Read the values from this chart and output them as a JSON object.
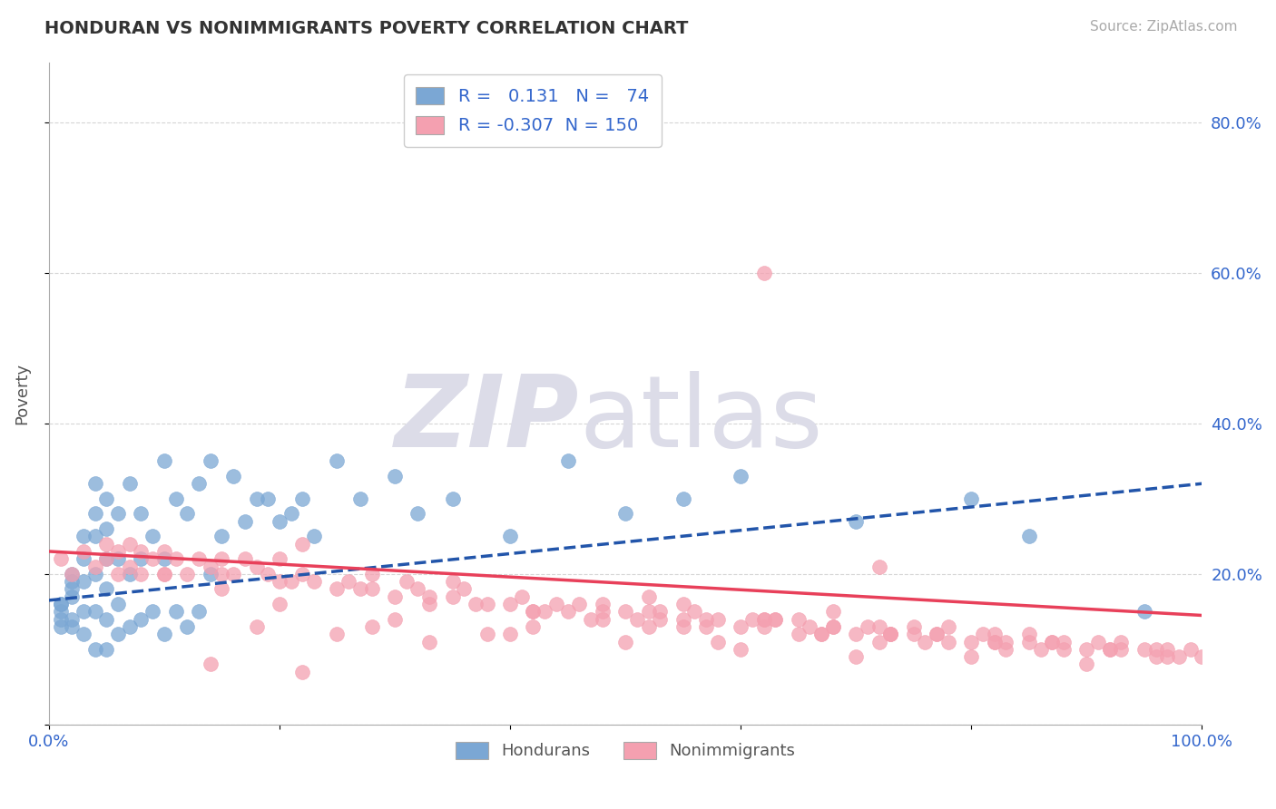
{
  "title": "HONDURAN VS NONIMMIGRANTS POVERTY CORRELATION CHART",
  "source": "Source: ZipAtlas.com",
  "ylabel": "Poverty",
  "blue_R": 0.131,
  "blue_N": 74,
  "pink_R": -0.307,
  "pink_N": 150,
  "blue_color": "#7BA7D4",
  "pink_color": "#F4A0B0",
  "blue_line_color": "#2255AA",
  "pink_line_color": "#E8405A",
  "background_color": "#ffffff",
  "grid_color": "#cccccc",
  "title_color": "#333333",
  "watermark_zip": "ZIP",
  "watermark_atlas": "atlas",
  "watermark_color": "#dcdce8",
  "legend_blue_label": "Hondurans",
  "legend_pink_label": "Nonimmigrants",
  "blue_intercept": 0.165,
  "blue_slope": 0.155,
  "pink_intercept": 0.23,
  "pink_slope": -0.085,
  "blue_x": [
    0.01,
    0.01,
    0.01,
    0.01,
    0.01,
    0.02,
    0.02,
    0.02,
    0.02,
    0.02,
    0.02,
    0.03,
    0.03,
    0.03,
    0.03,
    0.03,
    0.04,
    0.04,
    0.04,
    0.04,
    0.04,
    0.04,
    0.05,
    0.05,
    0.05,
    0.05,
    0.05,
    0.05,
    0.06,
    0.06,
    0.06,
    0.06,
    0.07,
    0.07,
    0.07,
    0.08,
    0.08,
    0.08,
    0.09,
    0.09,
    0.1,
    0.1,
    0.1,
    0.11,
    0.11,
    0.12,
    0.12,
    0.13,
    0.13,
    0.14,
    0.14,
    0.15,
    0.16,
    0.17,
    0.18,
    0.19,
    0.2,
    0.21,
    0.22,
    0.23,
    0.25,
    0.27,
    0.3,
    0.32,
    0.35,
    0.4,
    0.45,
    0.5,
    0.55,
    0.6,
    0.7,
    0.8,
    0.85,
    0.95
  ],
  "blue_y": [
    0.13,
    0.14,
    0.15,
    0.16,
    0.16,
    0.13,
    0.14,
    0.17,
    0.18,
    0.19,
    0.2,
    0.12,
    0.15,
    0.19,
    0.22,
    0.25,
    0.1,
    0.15,
    0.2,
    0.25,
    0.28,
    0.32,
    0.1,
    0.14,
    0.18,
    0.22,
    0.26,
    0.3,
    0.12,
    0.16,
    0.22,
    0.28,
    0.13,
    0.2,
    0.32,
    0.14,
    0.22,
    0.28,
    0.15,
    0.25,
    0.12,
    0.22,
    0.35,
    0.15,
    0.3,
    0.13,
    0.28,
    0.15,
    0.32,
    0.2,
    0.35,
    0.25,
    0.33,
    0.27,
    0.3,
    0.3,
    0.27,
    0.28,
    0.3,
    0.25,
    0.35,
    0.3,
    0.33,
    0.28,
    0.3,
    0.25,
    0.35,
    0.28,
    0.3,
    0.33,
    0.27,
    0.3,
    0.25,
    0.15
  ],
  "pink_x": [
    0.01,
    0.02,
    0.03,
    0.04,
    0.05,
    0.05,
    0.06,
    0.06,
    0.07,
    0.07,
    0.08,
    0.08,
    0.09,
    0.1,
    0.1,
    0.11,
    0.12,
    0.13,
    0.14,
    0.15,
    0.15,
    0.16,
    0.17,
    0.18,
    0.19,
    0.2,
    0.2,
    0.21,
    0.22,
    0.23,
    0.25,
    0.26,
    0.27,
    0.28,
    0.3,
    0.31,
    0.32,
    0.33,
    0.35,
    0.36,
    0.38,
    0.4,
    0.41,
    0.42,
    0.44,
    0.45,
    0.46,
    0.48,
    0.5,
    0.51,
    0.52,
    0.53,
    0.55,
    0.56,
    0.57,
    0.58,
    0.6,
    0.61,
    0.62,
    0.63,
    0.65,
    0.66,
    0.67,
    0.68,
    0.7,
    0.71,
    0.72,
    0.73,
    0.75,
    0.76,
    0.77,
    0.78,
    0.8,
    0.81,
    0.82,
    0.83,
    0.85,
    0.86,
    0.87,
    0.88,
    0.9,
    0.91,
    0.92,
    0.93,
    0.95,
    0.96,
    0.97,
    0.98,
    0.99,
    1.0,
    0.14,
    0.18,
    0.22,
    0.25,
    0.28,
    0.33,
    0.38,
    0.42,
    0.47,
    0.52,
    0.57,
    0.62,
    0.67,
    0.72,
    0.77,
    0.82,
    0.87,
    0.92,
    0.96,
    0.1,
    0.15,
    0.2,
    0.3,
    0.4,
    0.5,
    0.6,
    0.7,
    0.8,
    0.9,
    0.22,
    0.35,
    0.55,
    0.65,
    0.75,
    0.85,
    0.93,
    0.97,
    0.62,
    0.72,
    0.82,
    0.52,
    0.68,
    0.78,
    0.88,
    0.42,
    0.58,
    0.48,
    0.53,
    0.63,
    0.73,
    0.83,
    0.28,
    0.33,
    0.37,
    0.43,
    0.48,
    0.55,
    0.62,
    0.68,
    0.73
  ],
  "pink_y": [
    0.22,
    0.2,
    0.23,
    0.21,
    0.22,
    0.24,
    0.2,
    0.23,
    0.21,
    0.24,
    0.2,
    0.23,
    0.22,
    0.2,
    0.23,
    0.22,
    0.2,
    0.22,
    0.21,
    0.2,
    0.22,
    0.2,
    0.22,
    0.21,
    0.2,
    0.19,
    0.22,
    0.19,
    0.2,
    0.19,
    0.18,
    0.19,
    0.18,
    0.2,
    0.17,
    0.19,
    0.18,
    0.17,
    0.17,
    0.18,
    0.16,
    0.16,
    0.17,
    0.15,
    0.16,
    0.15,
    0.16,
    0.15,
    0.15,
    0.14,
    0.15,
    0.14,
    0.14,
    0.15,
    0.13,
    0.14,
    0.13,
    0.14,
    0.13,
    0.14,
    0.12,
    0.13,
    0.12,
    0.13,
    0.12,
    0.13,
    0.11,
    0.12,
    0.12,
    0.11,
    0.12,
    0.11,
    0.11,
    0.12,
    0.11,
    0.1,
    0.11,
    0.1,
    0.11,
    0.1,
    0.1,
    0.11,
    0.1,
    0.11,
    0.1,
    0.09,
    0.1,
    0.09,
    0.1,
    0.09,
    0.08,
    0.13,
    0.07,
    0.12,
    0.13,
    0.11,
    0.12,
    0.15,
    0.14,
    0.13,
    0.14,
    0.14,
    0.12,
    0.13,
    0.12,
    0.12,
    0.11,
    0.1,
    0.1,
    0.2,
    0.18,
    0.16,
    0.14,
    0.12,
    0.11,
    0.1,
    0.09,
    0.09,
    0.08,
    0.24,
    0.19,
    0.16,
    0.14,
    0.13,
    0.12,
    0.1,
    0.09,
    0.6,
    0.21,
    0.11,
    0.17,
    0.15,
    0.13,
    0.11,
    0.13,
    0.11,
    0.16,
    0.15,
    0.14,
    0.12,
    0.11,
    0.18,
    0.16,
    0.16,
    0.15,
    0.14,
    0.13,
    0.14,
    0.13,
    0.12
  ]
}
